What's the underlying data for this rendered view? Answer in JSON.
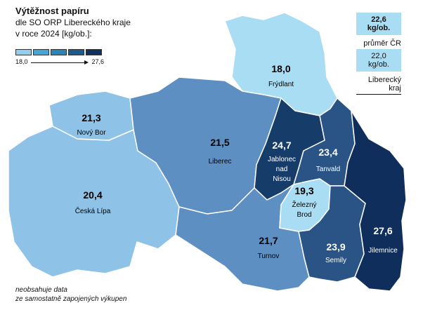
{
  "title": {
    "main": "Výtěžnost papíru",
    "line2": "dle SO ORP Libereckého kraje",
    "line3": "v roce 2024 [kg/ob.]:"
  },
  "legend": {
    "colors": [
      "#8fd0ef",
      "#44a5d6",
      "#2b86b8",
      "#1f5a8c",
      "#10305e"
    ],
    "min": "18,0",
    "max": "27,6"
  },
  "references": {
    "cr": {
      "value": "22,6 kg/ob.",
      "label": "průměr ČR"
    },
    "kraj": {
      "value": "22,0 kg/ob.",
      "label": "Liberecký kraj"
    }
  },
  "regions": [
    {
      "id": "frydlant",
      "value": "18,0",
      "name": "Frýdlant",
      "color": "#a8ddf4"
    },
    {
      "id": "novy-bor",
      "value": "21,3",
      "name": "Nový Bor",
      "color": "#8ec2e6"
    },
    {
      "id": "ceska-lipa",
      "value": "20,4",
      "name": "Česká Lípa",
      "color": "#8ec2e6"
    },
    {
      "id": "liberec",
      "value": "21,5",
      "name": "Liberec",
      "color": "#5e8fc2"
    },
    {
      "id": "jablonec",
      "value": "24,7",
      "name": "Jablonec|nad|Nisou",
      "color": "#163c69"
    },
    {
      "id": "tanvald",
      "value": "23,4",
      "name": "Tanvald",
      "color": "#2a5485"
    },
    {
      "id": "zelezny-brod",
      "value": "19,3",
      "name": "Železný|Brod",
      "color": "#a8ddf4"
    },
    {
      "id": "turnov",
      "value": "21,7",
      "name": "Turnov",
      "color": "#5e8fc2"
    },
    {
      "id": "semily",
      "value": "23,9",
      "name": "Semily",
      "color": "#2a5485"
    },
    {
      "id": "jilemnice",
      "value": "27,6",
      "name": "Jilemnice",
      "color": "#0f2e5c"
    }
  ],
  "note": {
    "line1": "neobsahuje data",
    "line2": "ze samostatně zapojených výkupen"
  }
}
